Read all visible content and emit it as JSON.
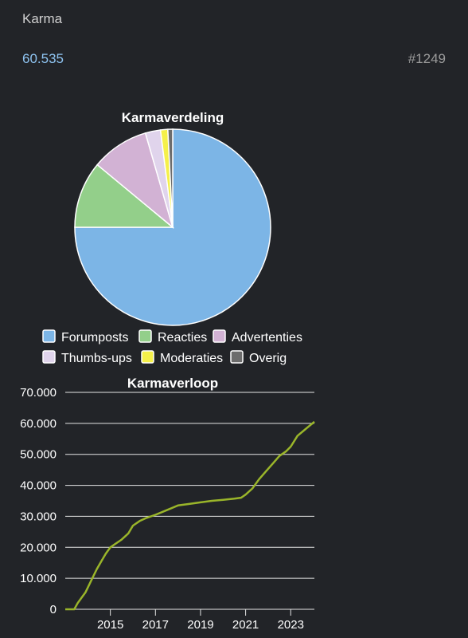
{
  "header": {
    "label": "Karma",
    "value": "60.535",
    "rank": "#1249"
  },
  "colors": {
    "background": "#222428",
    "link": "#8ec3f0",
    "line": "#9ab52a",
    "pie_stroke": "#ffffff"
  },
  "chart_data": [
    {
      "type": "pie",
      "title": "Karmaverdeling",
      "legend_position": "bottom",
      "slices": [
        {
          "label": "Forumposts",
          "value": 75.0,
          "color": "#7cb5e6"
        },
        {
          "label": "Reacties",
          "value": 11.0,
          "color": "#93cf8a"
        },
        {
          "label": "Advertenties",
          "value": 9.5,
          "color": "#d2b2d4"
        },
        {
          "label": "Thumbs-ups",
          "value": 2.5,
          "color": "#e0d4ec"
        },
        {
          "label": "Moderaties",
          "value": 1.2,
          "color": "#f5f04a"
        },
        {
          "label": "Overig",
          "value": 0.8,
          "color": "#6c6c6c"
        }
      ]
    },
    {
      "type": "line",
      "title": "Karmaverloop",
      "grid": true,
      "ylim": [
        0,
        70000
      ],
      "xlim": [
        2013.0,
        2024.05
      ],
      "y_ticks": [
        0,
        10000,
        20000,
        30000,
        40000,
        50000,
        60000,
        70000
      ],
      "y_tick_labels": [
        "0",
        "10.000",
        "20.000",
        "30.000",
        "40.000",
        "50.000",
        "60.000",
        "70.000"
      ],
      "x_ticks": [
        2015,
        2017,
        2019,
        2021,
        2023
      ],
      "x_tick_labels": [
        "2015",
        "2017",
        "2019",
        "2021",
        "2023"
      ],
      "series": [
        {
          "color": "#9ab52a",
          "x": [
            2013.0,
            2013.4,
            2013.55,
            2013.75,
            2013.9,
            2014.0,
            2014.2,
            2014.4,
            2014.6,
            2014.8,
            2015.0,
            2015.2,
            2015.5,
            2015.8,
            2016.0,
            2016.3,
            2016.6,
            2017.0,
            2017.5,
            2018.0,
            2018.5,
            2019.0,
            2019.5,
            2020.0,
            2020.5,
            2020.8,
            2021.0,
            2021.3,
            2021.6,
            2021.9,
            2022.2,
            2022.5,
            2022.8,
            2023.0,
            2023.3,
            2023.55,
            2023.8,
            2024.05
          ],
          "y": [
            0,
            0,
            2000,
            4000,
            5500,
            7000,
            10000,
            13000,
            15500,
            18000,
            20000,
            21000,
            22500,
            24500,
            27000,
            28500,
            29500,
            30500,
            32000,
            33500,
            34000,
            34500,
            35000,
            35300,
            35700,
            36000,
            37000,
            39000,
            42000,
            44500,
            47000,
            49500,
            51000,
            52500,
            56000,
            57500,
            59000,
            60500
          ]
        }
      ]
    }
  ]
}
